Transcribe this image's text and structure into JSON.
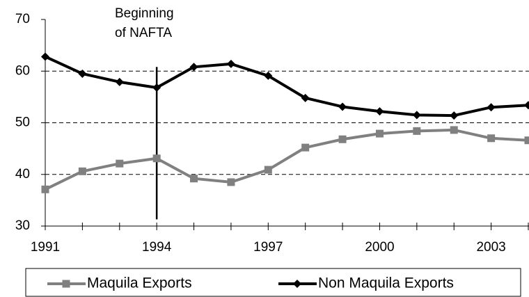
{
  "chart_data": {
    "type": "line",
    "x": [
      1991,
      1992,
      1993,
      1994,
      1995,
      1996,
      1997,
      1998,
      1999,
      2000,
      2001,
      2002,
      2003,
      2004
    ],
    "series": [
      {
        "name": "Maquila Exports",
        "color": "#808080",
        "marker": "square",
        "values": [
          37.1,
          40.6,
          42.1,
          43.1,
          39.2,
          38.5,
          40.9,
          45.2,
          46.8,
          47.9,
          48.4,
          48.6,
          47.0,
          46.6
        ]
      },
      {
        "name": "Non Maquila Exports",
        "color": "#000000",
        "marker": "diamond",
        "values": [
          62.8,
          59.5,
          57.9,
          56.8,
          60.8,
          61.4,
          59.1,
          54.8,
          53.1,
          52.2,
          51.5,
          51.4,
          53.0,
          53.4
        ]
      }
    ],
    "xlim": [
      1991,
      2004
    ],
    "xticks": [
      1991,
      1994,
      1997,
      2000,
      2003
    ],
    "xminorticks": [
      1991,
      1992,
      1993,
      1994,
      1995,
      1996,
      1997,
      1998,
      1999,
      2000,
      2001,
      2002,
      2003,
      2004
    ],
    "ylim": [
      30,
      70
    ],
    "yticks": [
      30,
      40,
      50,
      60,
      70
    ],
    "gridlines": [
      40,
      50,
      60
    ],
    "grid": true,
    "legend": "bottom",
    "annotation": {
      "text": [
        "Beginning",
        "of NAFTA"
      ],
      "x": 1994,
      "y_range": [
        31.3,
        60.8
      ]
    }
  }
}
